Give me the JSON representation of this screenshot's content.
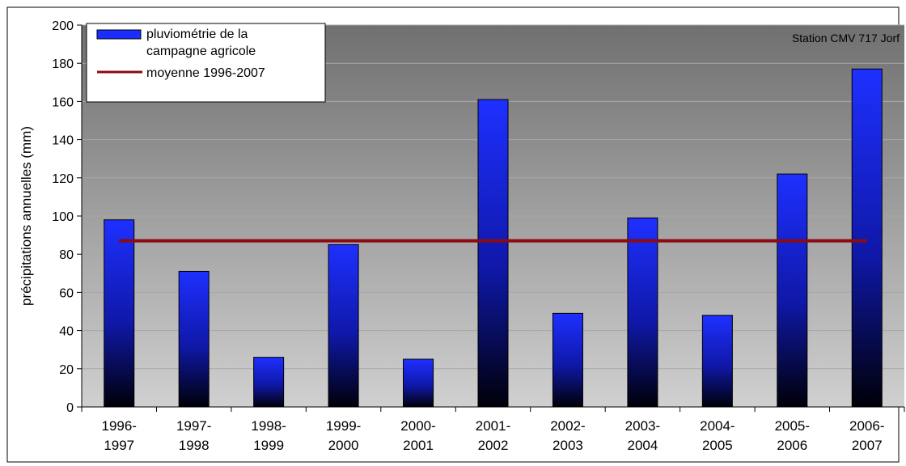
{
  "chart_data": {
    "type": "bar",
    "title": "",
    "annotation": "Station CMV 717 Jorf",
    "ylabel": "précipitations annuelles (mm)",
    "xlabel": "",
    "ylim": [
      0,
      200
    ],
    "yticks": [
      0,
      20,
      40,
      60,
      80,
      100,
      120,
      140,
      160,
      180,
      200
    ],
    "grid": true,
    "legend_position": "top-left",
    "categories": [
      [
        "1996-",
        "1997"
      ],
      [
        "1997-",
        "1998"
      ],
      [
        "1998-",
        "1999"
      ],
      [
        "1999-",
        "2000"
      ],
      [
        "2000-",
        "2001"
      ],
      [
        "2001-",
        "2002"
      ],
      [
        "2002-",
        "2003"
      ],
      [
        "2003-",
        "2004"
      ],
      [
        "2004-",
        "2005"
      ],
      [
        "2005-",
        "2006"
      ],
      [
        "2006-",
        "2007"
      ]
    ],
    "series": [
      {
        "name": "pluviométrie de la campagne agricole",
        "legend_lines": [
          "pluviométrie de la",
          "campagne agricole"
        ],
        "type": "bar",
        "color": "#1a2cff",
        "values": [
          98,
          71,
          26,
          85,
          25,
          161,
          49,
          99,
          48,
          122,
          177
        ]
      },
      {
        "name": "moyenne 1996-2007",
        "legend_lines": [
          "moyenne 1996-2007"
        ],
        "type": "line",
        "color": "#8b0a14",
        "value": 87
      }
    ]
  }
}
